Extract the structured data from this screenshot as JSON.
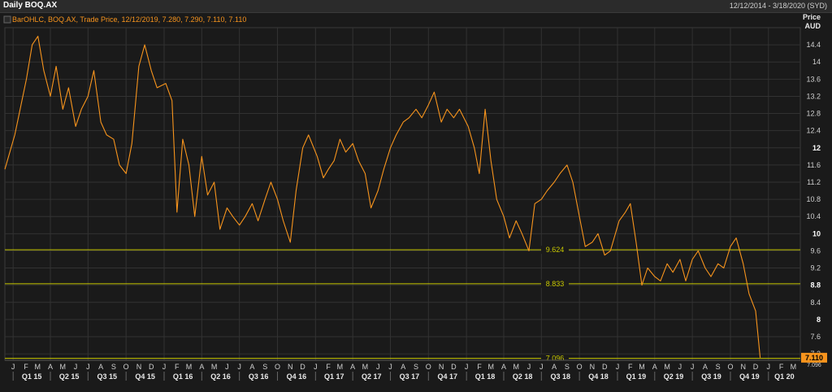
{
  "header": {
    "title": "Daily BOQ.AX",
    "date_range": "12/12/2014 - 3/18/2020 (SYD)"
  },
  "legend": {
    "text": "BarOHLC, BOQ.AX, Trade Price, 12/12/2019, 7.280, 7.290, 7.110, 7.110"
  },
  "axis": {
    "price_label": "Price",
    "currency_label": "AUD"
  },
  "colors": {
    "background": "#1a1a1a",
    "grid": "#323232",
    "price_line": "#f7941d",
    "level_line": "#c8c800",
    "last_price_bg": "#f7941d",
    "label_text": "#c8c800"
  },
  "chart_data": {
    "type": "line",
    "series": [
      {
        "name": "BOQ.AX",
        "x": [
          "12/12/2014",
          "1/5/2015",
          "2/2/2015",
          "2/16/2015",
          "3/2/2015",
          "3/16/2015",
          "4/1/2015",
          "4/15/2015",
          "5/1/2015",
          "5/15/2015",
          "6/1/2015",
          "6/15/2015",
          "7/1/2015",
          "7/15/2015",
          "8/1/2015",
          "8/15/2015",
          "9/1/2015",
          "9/15/2015",
          "10/1/2015",
          "10/15/2015",
          "11/1/2015",
          "11/15/2015",
          "12/1/2015",
          "12/15/2015",
          "1/5/2016",
          "1/20/2016",
          "2/1/2016",
          "2/15/2016",
          "3/1/2016",
          "3/15/2016",
          "4/1/2016",
          "4/15/2016",
          "5/1/2016",
          "5/15/2016",
          "6/1/2016",
          "6/15/2016",
          "7/1/2016",
          "7/15/2016",
          "8/1/2016",
          "8/15/2016",
          "9/1/2016",
          "9/15/2016",
          "10/1/2016",
          "10/15/2016",
          "11/1/2016",
          "11/15/2016",
          "12/1/2016",
          "12/15/2016",
          "1/5/2017",
          "1/20/2017",
          "2/1/2017",
          "2/15/2017",
          "3/1/2017",
          "3/15/2017",
          "4/1/2017",
          "4/15/2017",
          "5/1/2017",
          "5/15/2017",
          "6/1/2017",
          "6/15/2017",
          "7/1/2017",
          "7/15/2017",
          "8/1/2017",
          "8/15/2017",
          "9/1/2017",
          "9/15/2017",
          "10/1/2017",
          "10/15/2017",
          "11/1/2017",
          "11/15/2017",
          "12/1/2017",
          "12/15/2017",
          "1/5/2018",
          "1/20/2018",
          "2/1/2018",
          "2/15/2018",
          "3/1/2018",
          "3/15/2018",
          "4/1/2018",
          "4/15/2018",
          "5/1/2018",
          "5/15/2018",
          "6/1/2018",
          "6/15/2018",
          "7/1/2018",
          "7/15/2018",
          "8/1/2018",
          "8/15/2018",
          "9/1/2018",
          "9/15/2018",
          "10/1/2018",
          "10/15/2018",
          "11/1/2018",
          "11/15/2018",
          "12/1/2018",
          "12/15/2018",
          "1/5/2019",
          "1/20/2019",
          "2/1/2019",
          "2/15/2019",
          "3/1/2019",
          "3/15/2019",
          "4/1/2019",
          "4/15/2019",
          "5/1/2019",
          "5/15/2019",
          "6/1/2019",
          "6/15/2019",
          "7/1/2019",
          "7/15/2019",
          "8/1/2019",
          "8/15/2019",
          "9/1/2019",
          "9/15/2019",
          "10/1/2019",
          "10/15/2019",
          "11/1/2019",
          "11/15/2019",
          "12/1/2019",
          "12/12/2019"
        ],
        "values": [
          11.5,
          12.3,
          13.6,
          14.4,
          14.6,
          13.8,
          13.2,
          13.9,
          12.9,
          13.4,
          12.5,
          12.9,
          13.2,
          13.8,
          12.6,
          12.3,
          12.2,
          11.6,
          11.4,
          12.1,
          13.9,
          14.4,
          13.8,
          13.4,
          13.5,
          13.1,
          10.5,
          12.2,
          11.6,
          10.4,
          11.8,
          10.9,
          11.2,
          10.1,
          10.6,
          10.4,
          10.2,
          10.4,
          10.7,
          10.3,
          10.8,
          11.2,
          10.8,
          10.3,
          9.8,
          11.0,
          12.0,
          12.3,
          11.8,
          11.3,
          11.5,
          11.7,
          12.2,
          11.9,
          12.1,
          11.7,
          11.4,
          10.6,
          11.0,
          11.5,
          12.0,
          12.3,
          12.6,
          12.7,
          12.9,
          12.7,
          13.0,
          13.3,
          12.6,
          12.9,
          12.7,
          12.9,
          12.5,
          12.0,
          11.4,
          12.9,
          11.7,
          10.8,
          10.4,
          9.9,
          10.3,
          10.0,
          9.6,
          10.7,
          10.8,
          11.0,
          11.2,
          11.4,
          11.6,
          11.2,
          10.4,
          9.7,
          9.8,
          10.0,
          9.5,
          9.6,
          10.3,
          10.5,
          10.7,
          9.8,
          8.8,
          9.2,
          9.0,
          8.9,
          9.3,
          9.1,
          9.4,
          8.9,
          9.4,
          9.6,
          9.2,
          9.0,
          9.3,
          9.2,
          9.7,
          9.9,
          9.3,
          8.6,
          8.2,
          7.11
        ]
      }
    ],
    "y_ticks": [
      14.4,
      14,
      13.6,
      13.2,
      12.8,
      12.4,
      12,
      11.6,
      11.2,
      10.8,
      10.4,
      10,
      9.6,
      9.2,
      8.8,
      8.4,
      8,
      7.6,
      7.2
    ],
    "y_major": [
      12,
      10,
      8.8,
      8
    ],
    "ylim": [
      7.05,
      14.8
    ],
    "xlim": [
      "12/12/2014",
      "3/18/2020"
    ],
    "horizontal_levels": [
      {
        "value": 9.624,
        "label": "9.624"
      },
      {
        "value": 8.833,
        "label": "8.833"
      },
      {
        "value": 7.096,
        "label": "7.096"
      }
    ],
    "last_price": {
      "value": 7.11,
      "label": "7.110",
      "sub_label": "7.096"
    },
    "month_labels": [
      "J",
      "F",
      "M",
      "A",
      "M",
      "J",
      "J",
      "A",
      "S",
      "O",
      "N",
      "D",
      "J",
      "F",
      "M",
      "A",
      "M",
      "J",
      "J",
      "A",
      "S",
      "O",
      "N",
      "D",
      "J",
      "F",
      "M",
      "A",
      "M",
      "J",
      "J",
      "A",
      "S",
      "O",
      "N",
      "D",
      "J",
      "F",
      "M",
      "A",
      "M",
      "J",
      "J",
      "A",
      "S",
      "O",
      "N",
      "D",
      "J",
      "F",
      "M",
      "A",
      "M",
      "J",
      "J",
      "A",
      "S",
      "O",
      "N",
      "D",
      "J",
      "F",
      "M"
    ],
    "month_dates": [
      "1/1/2015",
      "2/1/2015",
      "3/1/2015",
      "4/1/2015",
      "5/1/2015",
      "6/1/2015",
      "7/1/2015",
      "8/1/2015",
      "9/1/2015",
      "10/1/2015",
      "11/1/2015",
      "12/1/2015",
      "1/1/2016",
      "2/1/2016",
      "3/1/2016",
      "4/1/2016",
      "5/1/2016",
      "6/1/2016",
      "7/1/2016",
      "8/1/2016",
      "9/1/2016",
      "10/1/2016",
      "11/1/2016",
      "12/1/2016",
      "1/1/2017",
      "2/1/2017",
      "3/1/2017",
      "4/1/2017",
      "5/1/2017",
      "6/1/2017",
      "7/1/2017",
      "8/1/2017",
      "9/1/2017",
      "10/1/2017",
      "11/1/2017",
      "12/1/2017",
      "1/1/2018",
      "2/1/2018",
      "3/1/2018",
      "4/1/2018",
      "5/1/2018",
      "6/1/2018",
      "7/1/2018",
      "8/1/2018",
      "9/1/2018",
      "10/1/2018",
      "11/1/2018",
      "12/1/2018",
      "1/1/2019",
      "2/1/2019",
      "3/1/2019",
      "4/1/2019",
      "5/1/2019",
      "6/1/2019",
      "7/1/2019",
      "8/1/2019",
      "9/1/2019",
      "10/1/2019",
      "11/1/2019",
      "12/1/2019",
      "1/1/2020",
      "2/1/2020",
      "3/1/2020"
    ],
    "quarter_labels": [
      "Q1 15",
      "Q2 15",
      "Q3 15",
      "Q4 15",
      "Q1 16",
      "Q2 16",
      "Q3 16",
      "Q4 16",
      "Q1 17",
      "Q2 17",
      "Q3 17",
      "Q4 17",
      "Q1 18",
      "Q2 18",
      "Q3 18",
      "Q4 18",
      "Q1 19",
      "Q2 19",
      "Q3 19",
      "Q4 19",
      "Q1 20"
    ],
    "quarter_dates": [
      "1/1/2015",
      "4/1/2015",
      "7/1/2015",
      "10/1/2015",
      "1/1/2016",
      "4/1/2016",
      "7/1/2016",
      "10/1/2016",
      "1/1/2017",
      "4/1/2017",
      "7/1/2017",
      "10/1/2017",
      "1/1/2018",
      "4/1/2018",
      "7/1/2018",
      "10/1/2018",
      "1/1/2019",
      "4/1/2019",
      "7/1/2019",
      "10/1/2019",
      "1/1/2020"
    ],
    "grid": true
  }
}
